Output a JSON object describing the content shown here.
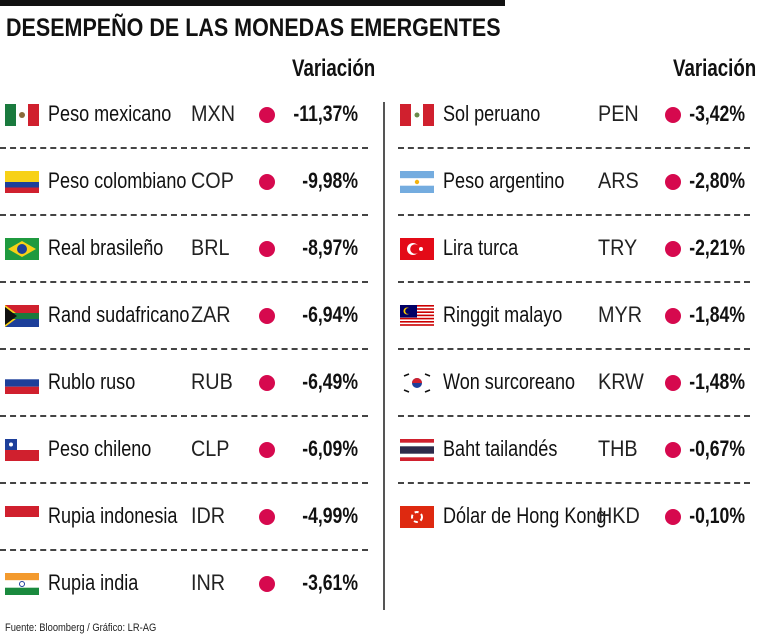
{
  "chart_data": {
    "type": "table",
    "title": "DESEMPEÑO DE LAS MONEDAS EMERGENTES",
    "column_header": "Variación",
    "dot_color": "#d6094e",
    "left": [
      {
        "flag": "mexico",
        "name": "Peso mexicano",
        "code": "MXN",
        "value": "-11,37%"
      },
      {
        "flag": "colombia",
        "name": "Peso colombiano",
        "code": "COP",
        "value": "-9,98%"
      },
      {
        "flag": "brazil",
        "name": "Real brasileño",
        "code": "BRL",
        "value": "-8,97%"
      },
      {
        "flag": "south-africa",
        "name": "Rand sudafricano",
        "code": "ZAR",
        "value": "-6,94%"
      },
      {
        "flag": "russia",
        "name": "Rublo ruso",
        "code": "RUB",
        "value": "-6,49%"
      },
      {
        "flag": "chile",
        "name": "Peso chileno",
        "code": "CLP",
        "value": "-6,09%"
      },
      {
        "flag": "indonesia",
        "name": "Rupia indonesia",
        "code": "IDR",
        "value": "-4,99%"
      },
      {
        "flag": "india",
        "name": "Rupia india",
        "code": "INR",
        "value": "-3,61%"
      }
    ],
    "right": [
      {
        "flag": "peru",
        "name": "Sol peruano",
        "code": "PEN",
        "value": "-3,42%"
      },
      {
        "flag": "argentina",
        "name": "Peso argentino",
        "code": "ARS",
        "value": "-2,80%"
      },
      {
        "flag": "turkey",
        "name": "Lira turca",
        "code": "TRY",
        "value": "-2,21%"
      },
      {
        "flag": "malaysia",
        "name": "Ringgit malayo",
        "code": "MYR",
        "value": "-1,84%"
      },
      {
        "flag": "south-korea",
        "name": "Won surcoreano",
        "code": "KRW",
        "value": "-1,48%"
      },
      {
        "flag": "thailand",
        "name": "Baht tailandés",
        "code": "THB",
        "value": "-0,67%"
      },
      {
        "flag": "hong-kong",
        "name": "Dólar de Hong Kong",
        "code": "HKD",
        "value": "-0,10%"
      }
    ]
  },
  "footer": {
    "source": "Fuente: Bloomberg / Gráfico: LR-AG"
  }
}
